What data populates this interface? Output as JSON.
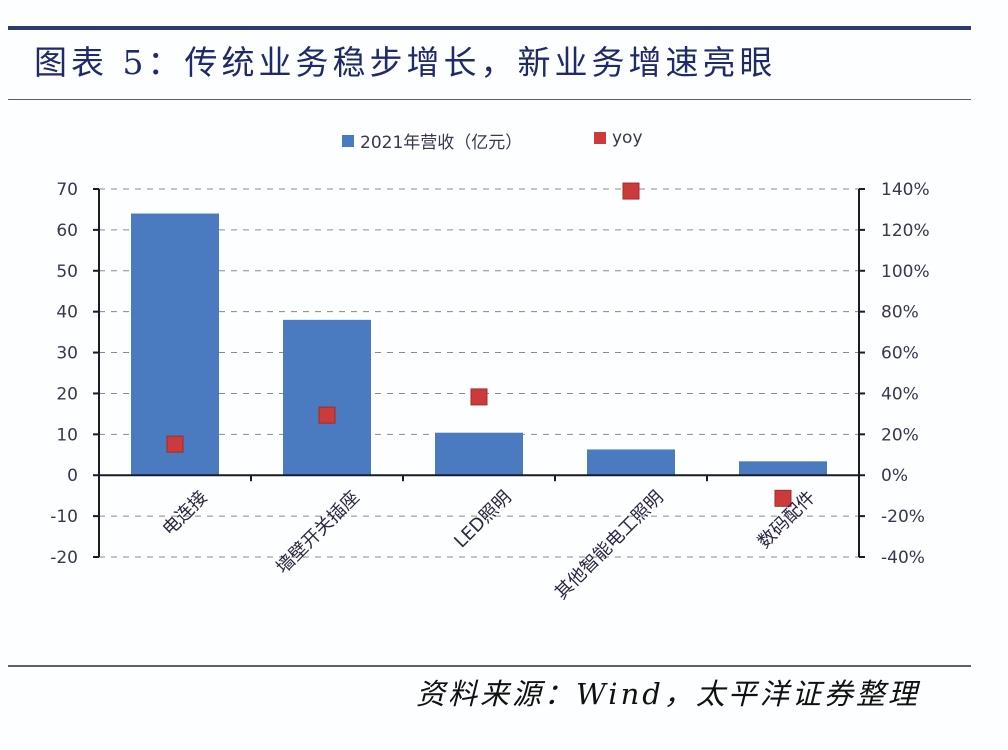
{
  "header": {
    "title": "图表 5：传统业务稳步增长，新业务增速亮眼"
  },
  "legend": {
    "items": [
      {
        "label": "2021年营收（亿元）",
        "color": "#4a7ac0",
        "shape": "square"
      },
      {
        "label": "yoy",
        "color": "#cc3b3b",
        "shape": "square"
      }
    ]
  },
  "footer": {
    "source": "资料来源：Wind，太平洋证券整理"
  },
  "colors": {
    "bar": "#4a7ac0",
    "marker": "#cc3b3b",
    "grid": "#8a8a8a",
    "axis": "#1a1a2a",
    "text": "#3a3550"
  },
  "chart_data": {
    "type": "bar",
    "title": "图表 5：传统业务稳步增长，新业务增速亮眼",
    "categories": [
      "电连接",
      "墙壁开关插座",
      "LED照明",
      "其他智能电工照明",
      "数码配件"
    ],
    "series": [
      {
        "name": "2021年营收（亿元）",
        "type": "bar",
        "axis": "left",
        "values": [
          64.0,
          38.0,
          10.4,
          6.3,
          3.4
        ]
      },
      {
        "name": "yoy",
        "type": "scatter",
        "axis": "right",
        "unit": "%",
        "values": [
          15.2,
          29.4,
          38.3,
          139.0,
          -11.3
        ]
      }
    ],
    "xlabel": "",
    "ylabel": "",
    "ylim": [
      -20,
      70
    ],
    "y_ticks": [
      "70",
      "60",
      "50",
      "40",
      "30",
      "20",
      "10",
      "0",
      "-10",
      "-20"
    ],
    "y2lim": [
      -40,
      140
    ],
    "y2_ticks": [
      "140%",
      "120%",
      "100%",
      "80%",
      "60%",
      "40%",
      "20%",
      "0%",
      "-20%",
      "-40%"
    ],
    "grid": "horizontal dashed",
    "legend_position": "top"
  }
}
